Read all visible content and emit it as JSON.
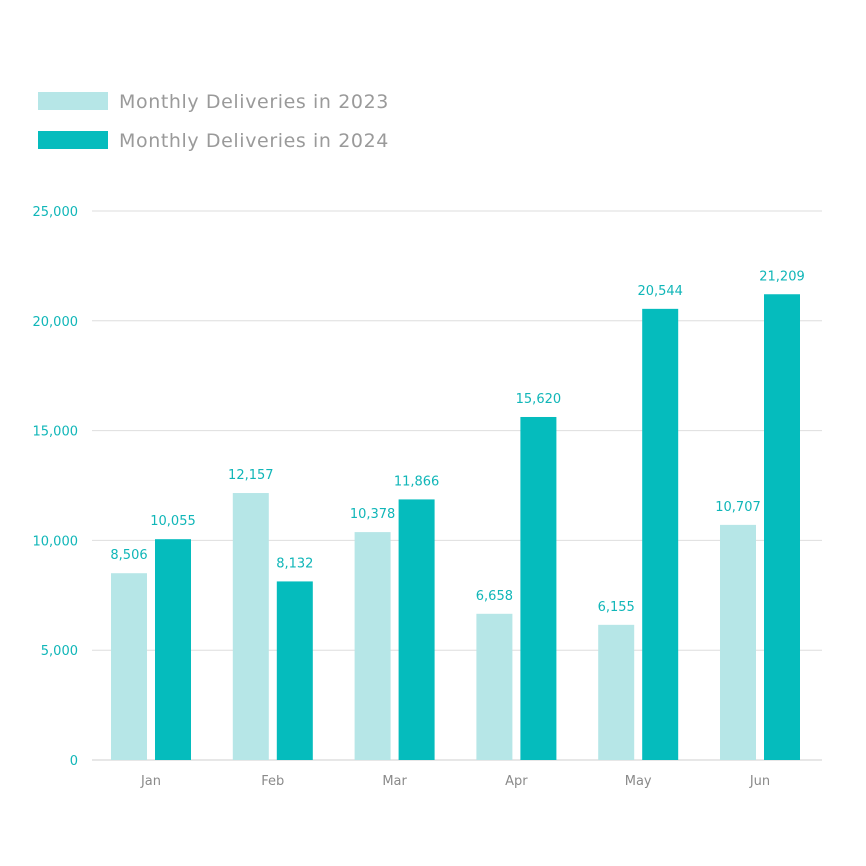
{
  "chart_data": {
    "type": "bar",
    "categories": [
      "Jan",
      "Feb",
      "Mar",
      "Apr",
      "May",
      "Jun"
    ],
    "series": [
      {
        "name": "Monthly Deliveries in 2023",
        "color": "#b6e6e7",
        "values": [
          8506,
          12157,
          10378,
          6658,
          6155,
          10707
        ],
        "labels": [
          "8,506",
          "12,157",
          "10,378",
          "6,658",
          "6,155",
          "10,707"
        ]
      },
      {
        "name": "Monthly Deliveries in 2024",
        "color": "#05bcbd",
        "values": [
          10055,
          8132,
          11866,
          15620,
          20544,
          21209
        ],
        "labels": [
          "10,055",
          "8,132",
          "11,866",
          "15,620",
          "20,544",
          "21,209"
        ]
      }
    ],
    "yticks": [
      0,
      5000,
      10000,
      15000,
      20000,
      25000
    ],
    "ytick_labels": [
      "0",
      "5,000",
      "10,000",
      "15,000",
      "20,000",
      "25,000"
    ],
    "ylim": [
      0,
      25000
    ],
    "grid": true,
    "legend_position": "top-left",
    "title": "",
    "xlabel": "",
    "ylabel": ""
  }
}
